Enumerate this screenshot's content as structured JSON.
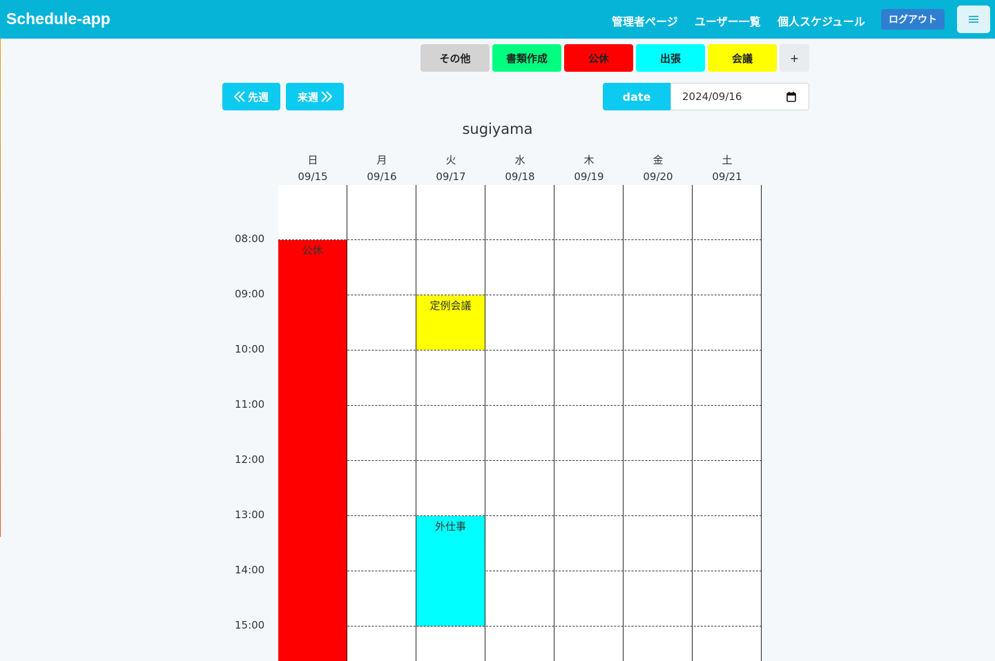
{
  "navbar": {
    "brand": "Schedule-app",
    "links": [
      "管理者ページ",
      "ユーザー一覧",
      "個人スケジュール"
    ],
    "logout_label": "ログアウト",
    "menu_icon": "hamburger-icon"
  },
  "categories": [
    {
      "label": "その他",
      "color": "#d3d3d3"
    },
    {
      "label": "書類作成",
      "color": "#00ff7f"
    },
    {
      "label": "公休",
      "color": "#ff0000"
    },
    {
      "label": "出張",
      "color": "#00ffff"
    },
    {
      "label": "会議",
      "color": "#ffff00"
    }
  ],
  "add_label": "+",
  "week_nav": {
    "prev_label": "先週",
    "next_label": "来週"
  },
  "date_picker": {
    "label": "date",
    "value": "2024/09/16"
  },
  "user_name": "sugiyama",
  "days": [
    {
      "weekday": "日",
      "date": "09/15"
    },
    {
      "weekday": "月",
      "date": "09/16"
    },
    {
      "weekday": "火",
      "date": "09/17"
    },
    {
      "weekday": "水",
      "date": "09/18"
    },
    {
      "weekday": "木",
      "date": "09/19"
    },
    {
      "weekday": "金",
      "date": "09/20"
    },
    {
      "weekday": "土",
      "date": "09/21"
    }
  ],
  "times": [
    "08:00",
    "09:00",
    "10:00",
    "11:00",
    "12:00",
    "13:00",
    "14:00",
    "15:00"
  ],
  "events": [
    {
      "title": "公休",
      "day_index": 0,
      "start": "08:00",
      "end": "",
      "color": "#ff0000"
    },
    {
      "title": "定例会議",
      "day_index": 2,
      "start": "09:00",
      "end": "10:00",
      "color": "#ffff00"
    },
    {
      "title": "外仕事",
      "day_index": 2,
      "start": "13:00",
      "end": "15:00",
      "color": "#00ffff"
    }
  ]
}
